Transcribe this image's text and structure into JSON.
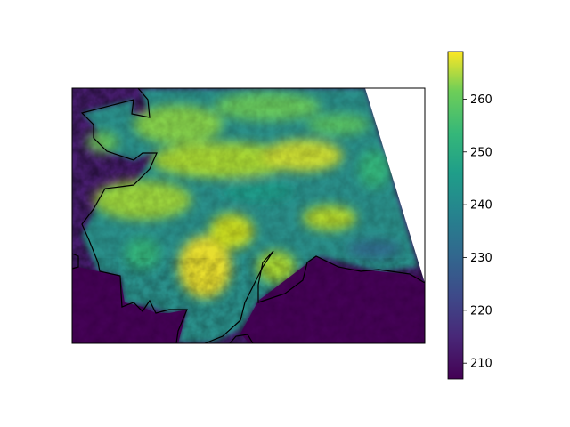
{
  "map": {
    "title": "",
    "projection_clip": "satellite swath with missing data in upper-right",
    "colormap": "viridis",
    "colorbar": {
      "min": 207,
      "max": 269,
      "ticks": [
        {
          "value": 210,
          "label": "210"
        },
        {
          "value": 220,
          "label": "220"
        },
        {
          "value": 230,
          "label": "230"
        },
        {
          "value": 240,
          "label": "240"
        },
        {
          "value": 250,
          "label": "250"
        },
        {
          "value": 260,
          "label": "260"
        }
      ]
    },
    "colors": {
      "viridis_low": "#440154",
      "viridis_mid": "#21918c",
      "viridis_high": "#fde725",
      "coastline": "#000000"
    }
  }
}
